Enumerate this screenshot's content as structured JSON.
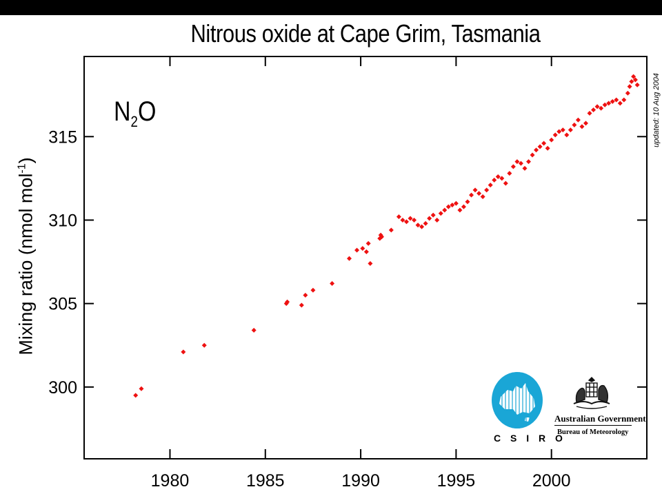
{
  "chart_data": {
    "type": "scatter",
    "title": "Nitrous oxide at Cape Grim, Tasmania",
    "species_label": {
      "main": "N",
      "sub": "2",
      "end": "O"
    },
    "ylabel": {
      "text": "Mixing ratio (nmol mol",
      "sup": "-1",
      "end": ")"
    },
    "xlabel": "",
    "xlim": [
      1975.5,
      2005.0
    ],
    "ylim": [
      295.7,
      319.8
    ],
    "x_ticks": [
      1980,
      1985,
      1990,
      1995,
      2000
    ],
    "y_ticks": [
      300,
      305,
      310,
      315
    ],
    "grid": false,
    "marker_color": "#ee1111",
    "marker": "diamond",
    "series": [
      {
        "x": [
          1978.2,
          1978.5,
          1980.7,
          1981.8,
          1984.4,
          1986.1,
          1986.15,
          1986.9,
          1987.1,
          1987.5,
          1988.5,
          1989.4,
          1989.8,
          1990.1,
          1990.3,
          1990.4,
          1990.5,
          1991.0,
          1991.05,
          1991.1,
          1991.6,
          1992.0,
          1992.2,
          1992.4,
          1992.6,
          1992.8,
          1993.0,
          1993.2,
          1993.4,
          1993.6,
          1993.8,
          1994.0,
          1994.2,
          1994.4,
          1994.6,
          1994.8,
          1995.0,
          1995.2,
          1995.4,
          1995.6,
          1995.8,
          1996.0,
          1996.2,
          1996.4,
          1996.6,
          1996.8,
          1997.0,
          1997.2,
          1997.4,
          1997.6,
          1997.8,
          1998.0,
          1998.2,
          1998.4,
          1998.6,
          1998.8,
          1999.0,
          1999.2,
          1999.4,
          1999.6,
          1999.8,
          2000.0,
          2000.2,
          2000.4,
          2000.6,
          2000.8,
          2001.0,
          2001.2,
          2001.4,
          2001.6,
          2001.8,
          2002.0,
          2002.2,
          2002.4,
          2002.6,
          2002.8,
          2003.0,
          2003.2,
          2003.4,
          2003.6,
          2003.8,
          2004.0,
          2004.1,
          2004.2,
          2004.3,
          2004.4,
          2004.5
        ],
        "y": [
          299.5,
          299.9,
          302.1,
          302.5,
          303.4,
          305.0,
          305.1,
          304.9,
          305.5,
          305.8,
          306.2,
          307.7,
          308.2,
          308.3,
          308.1,
          308.6,
          307.4,
          308.9,
          309.1,
          309.0,
          309.4,
          310.2,
          310.0,
          309.9,
          310.1,
          310.0,
          309.7,
          309.6,
          309.8,
          310.1,
          310.3,
          310.0,
          310.4,
          310.6,
          310.8,
          310.9,
          311.0,
          310.6,
          310.8,
          311.1,
          311.5,
          311.8,
          311.6,
          311.4,
          311.8,
          312.1,
          312.4,
          312.6,
          312.5,
          312.2,
          312.8,
          313.2,
          313.5,
          313.4,
          313.1,
          313.5,
          313.9,
          314.2,
          314.4,
          314.6,
          314.3,
          314.8,
          315.1,
          315.3,
          315.4,
          315.1,
          315.4,
          315.7,
          316.0,
          315.6,
          315.8,
          316.4,
          316.6,
          316.8,
          316.7,
          316.9,
          317.0,
          317.1,
          317.2,
          317.0,
          317.2,
          317.6,
          318.0,
          318.3,
          318.6,
          318.4,
          318.1
        ]
      }
    ]
  },
  "annotation": {
    "updated": "updated: 10 Aug 2004"
  },
  "logos": {
    "csiro": {
      "text": "C S I R O",
      "color": "#1aa6d6"
    },
    "bom": {
      "government": "Australian Government",
      "department": "Bureau of Meteorology"
    }
  }
}
